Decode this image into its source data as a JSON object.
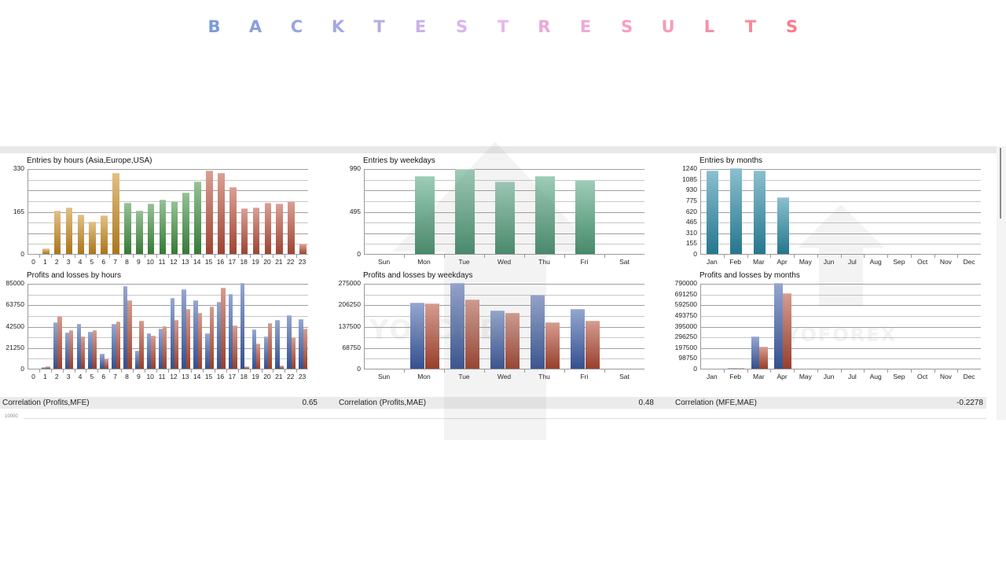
{
  "page": {
    "title_letters": [
      "B",
      "A",
      "C",
      "K",
      "T",
      "E",
      "S",
      "T",
      "R",
      "E",
      "S",
      "U",
      "L",
      "T",
      "S"
    ],
    "title_colors": [
      "#7b9bd8",
      "#8aa0dc",
      "#97a6e0",
      "#a2a9e2",
      "#b4abe6",
      "#c9b1ea",
      "#dbb3ee",
      "#e8b6f0",
      "#eba8d8",
      "#f0a9d6",
      "#f59fc4",
      "#f79bb4",
      "#f98ea4",
      "#fa8898",
      "#fb7a8c"
    ],
    "watermark": "YOFOREX"
  },
  "chart_data": [
    {
      "id": "entries_hours",
      "type": "bar",
      "title": "Entries by hours (Asia,Europe,USA)",
      "categories": [
        "0",
        "1",
        "2",
        "3",
        "4",
        "5",
        "6",
        "7",
        "8",
        "9",
        "10",
        "11",
        "12",
        "13",
        "14",
        "15",
        "16",
        "17",
        "18",
        "19",
        "20",
        "21",
        "22",
        "23"
      ],
      "values": [
        0,
        22,
        168,
        178,
        150,
        125,
        147,
        312,
        197,
        166,
        193,
        208,
        202,
        235,
        278,
        322,
        312,
        258,
        175,
        178,
        198,
        193,
        203,
        38
      ],
      "series_colors_by_session": {
        "asia": "#c98a1f",
        "europe": "#3f8f3f",
        "usa": "#b9503c"
      },
      "session_of_category": [
        "asia",
        "asia",
        "asia",
        "asia",
        "asia",
        "asia",
        "asia",
        "asia",
        "europe",
        "europe",
        "europe",
        "europe",
        "europe",
        "europe",
        "europe",
        "usa",
        "usa",
        "usa",
        "usa",
        "usa",
        "usa",
        "usa",
        "usa",
        "usa"
      ],
      "yticks": [
        "330",
        "165",
        "0"
      ],
      "ylim": [
        0,
        330
      ],
      "grid": true
    },
    {
      "id": "pl_hours",
      "type": "bar",
      "title": "Profits and losses by hours",
      "categories": [
        "0",
        "1",
        "2",
        "3",
        "4",
        "5",
        "6",
        "7",
        "8",
        "9",
        "10",
        "11",
        "12",
        "13",
        "14",
        "15",
        "16",
        "17",
        "18",
        "19",
        "20",
        "21",
        "22",
        "23"
      ],
      "series": [
        {
          "name": "Profits",
          "color": "#3d5ea8",
          "values": [
            0,
            1500,
            46000,
            35500,
            44500,
            37000,
            15000,
            44500,
            82000,
            18000,
            35000,
            39500,
            70000,
            79000,
            68000,
            35000,
            66000,
            74000,
            85000,
            39000,
            32000,
            48000,
            53000,
            49000
          ]
        },
        {
          "name": "Losses",
          "color": "#b34a34",
          "values": [
            0,
            2000,
            52000,
            38000,
            32000,
            38500,
            10000,
            46500,
            68000,
            47500,
            32500,
            42500,
            48000,
            59000,
            55500,
            61500,
            80000,
            43000,
            2500,
            25000,
            45000,
            3500,
            31000,
            40000
          ]
        }
      ],
      "yticks": [
        "85000",
        "63750",
        "42500",
        "21250",
        "0"
      ],
      "ylim": [
        0,
        85000
      ],
      "grid": true
    },
    {
      "id": "entries_weekdays",
      "type": "bar",
      "title": "Entries by weekdays",
      "categories": [
        "Sun",
        "Mon",
        "Tue",
        "Wed",
        "Thu",
        "Fri",
        "Sat"
      ],
      "values": [
        0,
        900,
        985,
        835,
        895,
        855,
        0
      ],
      "color": "#4fa27c",
      "yticks": [
        "990",
        "495",
        "0"
      ],
      "ylim": [
        0,
        990
      ],
      "grid": true
    },
    {
      "id": "pl_weekdays",
      "type": "bar",
      "title": "Profits and losses by weekdays",
      "categories": [
        "Sun",
        "Mon",
        "Tue",
        "Wed",
        "Thu",
        "Fri",
        "Sat"
      ],
      "series": [
        {
          "name": "Profits",
          "color": "#3d5ea8",
          "values": [
            0,
            212000,
            275000,
            187000,
            236000,
            193000,
            0
          ]
        },
        {
          "name": "Losses",
          "color": "#b34a34",
          "values": [
            0,
            209000,
            222000,
            179000,
            148000,
            155000,
            0
          ]
        }
      ],
      "yticks": [
        "275000",
        "206250",
        "137500",
        "68750",
        "0"
      ],
      "ylim": [
        0,
        275000
      ],
      "grid": true
    },
    {
      "id": "entries_months",
      "type": "bar",
      "title": "Entries by months",
      "categories": [
        "Jan",
        "Feb",
        "Mar",
        "Apr",
        "May",
        "Jun",
        "Jul",
        "Aug",
        "Sep",
        "Oct",
        "Nov",
        "Dec"
      ],
      "values": [
        1205,
        1240,
        1210,
        815,
        0,
        0,
        0,
        0,
        0,
        0,
        0,
        0
      ],
      "color": "#2b8ba6",
      "yticks": [
        "1240",
        "1085",
        "930",
        "775",
        "620",
        "465",
        "310",
        "155",
        "0"
      ],
      "ylim": [
        0,
        1240
      ],
      "grid": true
    },
    {
      "id": "pl_months",
      "type": "bar",
      "title": "Profits and losses by months",
      "categories": [
        "Jan",
        "Feb",
        "Mar",
        "Apr",
        "May",
        "Jun",
        "Jul",
        "Aug",
        "Sep",
        "Oct",
        "Nov",
        "Dec"
      ],
      "series": [
        {
          "name": "Profits",
          "color": "#3d5ea8",
          "values": [
            0,
            6000,
            296000,
            790000,
            0,
            0,
            0,
            0,
            0,
            0,
            0,
            0
          ]
        },
        {
          "name": "Losses",
          "color": "#b34a34",
          "values": [
            0,
            5000,
            205000,
            693000,
            0,
            0,
            0,
            0,
            0,
            0,
            0,
            0
          ]
        }
      ],
      "yticks": [
        "790000",
        "691250",
        "592500",
        "493750",
        "395000",
        "296250",
        "197500",
        "98750",
        "0"
      ],
      "ylim": [
        0,
        790000
      ],
      "grid": true
    }
  ],
  "correlations": [
    {
      "label": "Correlation (Profits,MFE)",
      "value": "0.65"
    },
    {
      "label": "Correlation (Profits,MAE)",
      "value": "0.48"
    },
    {
      "label": "Correlation (MFE,MAE)",
      "value": "-0.2278"
    }
  ],
  "below": {
    "tick_label": "10000"
  }
}
